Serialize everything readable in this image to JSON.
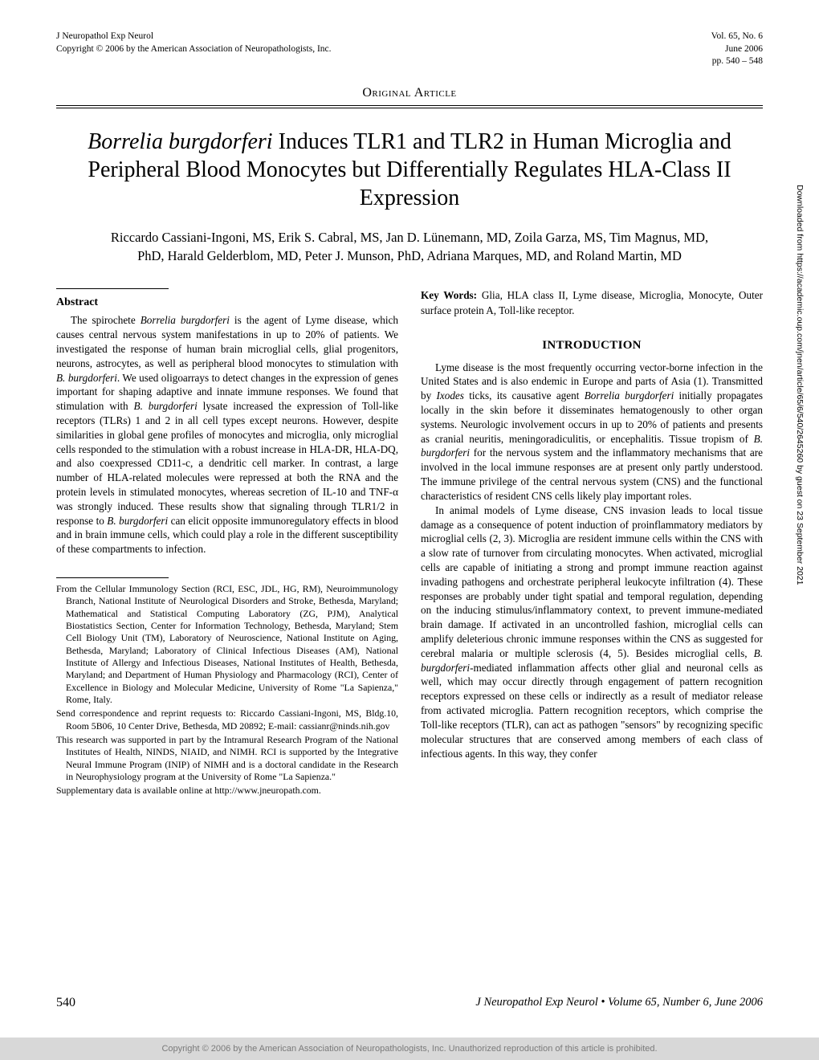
{
  "header": {
    "journal": "J Neuropathol Exp Neurol",
    "copyright_line": "Copyright © 2006 by the American Association of Neuropathologists, Inc.",
    "vol": "Vol. 65, No. 6",
    "date": "June 2006",
    "pages": "pp. 540 – 548"
  },
  "section_label": "Original Article",
  "title_parts": {
    "italic_lead": "Borrelia burgdorferi",
    "rest": " Induces TLR1 and TLR2 in Human Microglia and Peripheral Blood Monocytes but Differentially Regulates HLA-Class II Expression"
  },
  "authors": "Riccardo Cassiani-Ingoni, MS, Erik S. Cabral, MS, Jan D. Lünemann, MD, Zoila Garza, MS, Tim Magnus, MD, PhD, Harald Gelderblom, MD, Peter J. Munson, PhD, Adriana Marques, MD, and Roland Martin, MD",
  "abstract": {
    "label": "Abstract",
    "body_html": "The spirochete <span class=\"ital\">Borrelia burgdorferi</span> is the agent of Lyme disease, which causes central nervous system manifestations in up to 20% of patients. We investigated the response of human brain microglial cells, glial progenitors, neurons, astrocytes, as well as peripheral blood monocytes to stimulation with <span class=\"ital\">B. burgdorferi</span>. We used oligoarrays to detect changes in the expression of genes important for shaping adaptive and innate immune responses. We found that stimulation with <span class=\"ital\">B. burgdorferi</span> lysate increased the expression of Toll-like receptors (TLRs) 1 and 2 in all cell types except neurons. However, despite similarities in global gene profiles of monocytes and microglia, only microglial cells responded to the stimulation with a robust increase in HLA-DR, HLA-DQ, and also coexpressed CD11-c, a dendritic cell marker. In contrast, a large number of HLA-related molecules were repressed at both the RNA and the protein levels in stimulated monocytes, whereas secretion of IL-10 and TNF-<span class=\"greek\">α</span> was strongly induced. These results show that signaling through TLR1/2 in response to <span class=\"ital\">B. burgdorferi</span> can elicit opposite immunoregulatory effects in blood and in brain immune cells, which could play a role in the different susceptibility of these compartments to infection."
  },
  "affiliations": [
    "From the Cellular Immunology Section (RCI, ESC, JDL, HG, RM), Neuroimmunology Branch, National Institute of Neurological Disorders and Stroke, Bethesda, Maryland; Mathematical and Statistical Computing Laboratory (ZG, PJM), Analytical Biostatistics Section, Center for Information Technology, Bethesda, Maryland; Stem Cell Biology Unit (TM), Laboratory of Neuroscience, National Institute on Aging, Bethesda, Maryland; Laboratory of Clinical Infectious Diseases (AM), National Institute of Allergy and Infectious Diseases, National Institutes of Health, Bethesda, Maryland; and Department of Human Physiology and Pharmacology (RCI), Center of Excellence in Biology and Molecular Medicine, University of Rome \"La Sapienza,\" Rome, Italy.",
    "Send correspondence and reprint requests to: Riccardo Cassiani-Ingoni, MS, Bldg.10, Room 5B06, 10 Center Drive, Bethesda, MD 20892; E-mail: cassianr@ninds.nih.gov",
    "This research was supported in part by the Intramural Research Program of the National Institutes of Health, NINDS, NIAID, and NIMH. RCI is supported by the Integrative Neural Immune Program (INIP) of NIMH and is a doctoral candidate in the Research in Neurophysiology program at the University of Rome \"La Sapienza.\"",
    "Supplementary data is available online at http://www.jneuropath.com."
  ],
  "keywords": {
    "label": "Key Words:",
    "text": " Glia, HLA class II, Lyme disease, Microglia, Monocyte, Outer surface protein A, Toll-like receptor."
  },
  "intro": {
    "heading": "INTRODUCTION",
    "paragraphs_html": [
      "Lyme disease is the most frequently occurring vector-borne infection in the United States and is also endemic in Europe and parts of Asia (1). Transmitted by <span class=\"ital\">Ixodes</span> ticks, its causative agent <span class=\"ital\">Borrelia burgdorferi</span> initially propagates locally in the skin before it disseminates hematogenously to other organ systems. Neurologic involvement occurs in up to 20% of patients and presents as cranial neuritis, meningoradiculitis, or encephalitis. Tissue tropism of <span class=\"ital\">B. burgdorferi</span> for the nervous system and the inflammatory mechanisms that are involved in the local immune responses are at present only partly understood. The immune privilege of the central nervous system (CNS) and the functional characteristics of resident CNS cells likely play important roles.",
      "In animal models of Lyme disease, CNS invasion leads to local tissue damage as a consequence of potent induction of proinflammatory mediators by microglial cells (2, 3). Microglia are resident immune cells within the CNS with a slow rate of turnover from circulating monocytes. When activated, microglial cells are capable of initiating a strong and prompt immune reaction against invading pathogens and orchestrate peripheral leukocyte infiltration (4). These responses are probably under tight spatial and temporal regulation, depending on the inducing stimulus/inflammatory context, to prevent immune-mediated brain damage. If activated in an uncontrolled fashion, microglial cells can amplify deleterious chronic immune responses within the CNS as suggested for cerebral malaria or multiple sclerosis (4, 5). Besides microglial cells, <span class=\"ital\">B. burgdorferi</span>-mediated inflammation affects other glial and neuronal cells as well, which may occur directly through engagement of pattern recognition receptors expressed on these cells or indirectly as a result of mediator release from activated microglia. Pattern recognition receptors, which comprise the Toll-like receptors (TLR), can act as pathogen \"sensors\" by recognizing specific molecular structures that are conserved among members of each class of infectious agents. In this way, they confer"
    ]
  },
  "footer": {
    "page": "540",
    "journal_html": "<span class=\"ital\">J Neuropathol Exp Neurol</span> • Volume 65, Number 6, June 2006"
  },
  "copyright_bar": "Copyright © 2006 by the American Association of Neuropathologists, Inc. Unauthorized reproduction of this article is prohibited.",
  "side_download": "Downloaded from https://academic.oup.com/jnen/article/65/6/540/2645260 by guest on 23 September 2021"
}
